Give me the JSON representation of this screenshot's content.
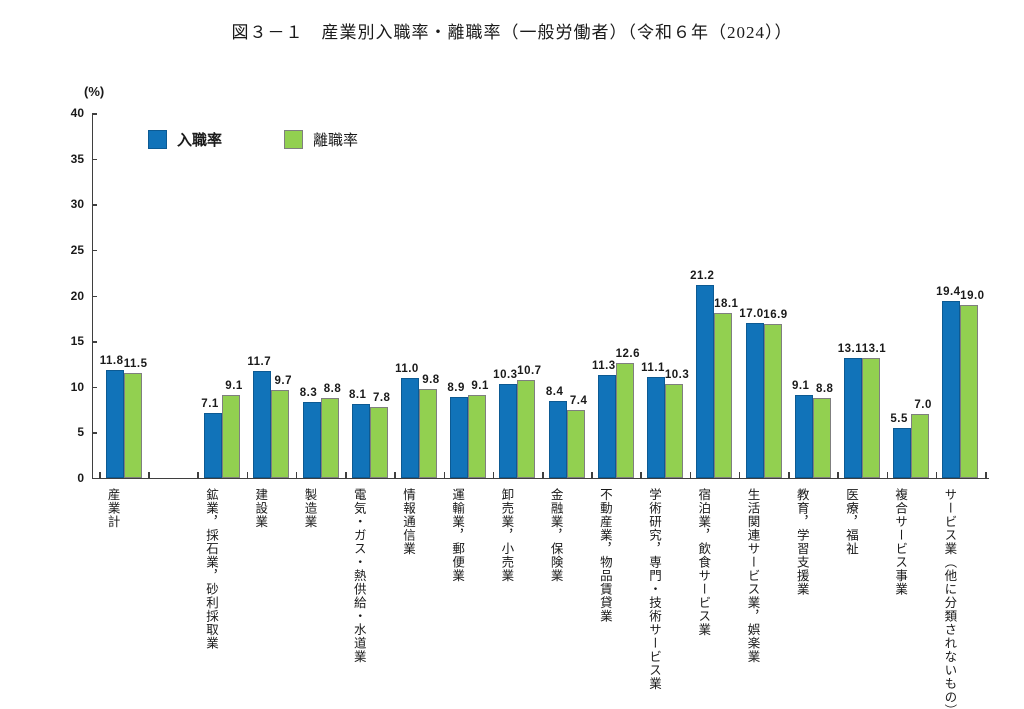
{
  "title": "図３－１　産業別入職率・離職率（一般労働者）（令和６年（2024））",
  "y_axis_unit_label": "(%)",
  "legend": {
    "series1_label": "入職率",
    "series2_label": "離職率"
  },
  "colors": {
    "hire_fill": "#1173B9",
    "hire_border": "#0c5a93",
    "separation_fill": "#92D050",
    "separation_border": "#7f7f7f",
    "axis": "#3f3f3f"
  },
  "chart_data": {
    "type": "bar",
    "title": "図３－１　産業別入職率・離職率（一般労働者）（令和６年（2024））",
    "ylabel": "(%)",
    "ylim": [
      0,
      40
    ],
    "ytick_step": 5,
    "grid": false,
    "legend_position": "top-left-inside",
    "gap_after_first_category": true,
    "categories": [
      "産業計",
      "鉱業，採石業，砂利採取業",
      "建設業",
      "製造業",
      "電気・ガス・熱供給・水道業",
      "情報通信業",
      "運輸業，郵便業",
      "卸売業，小売業",
      "金融業，保険業",
      "不動産業，物品賃貸業",
      "学術研究，専門・技術サービス業",
      "宿泊業，飲食サービス業",
      "生活関連サービス業，娯楽業",
      "教育，学習支援業",
      "医療，福祉",
      "複合サービス事業",
      "サービス業（他に分類されないもの）"
    ],
    "series": [
      {
        "name": "入職率",
        "values": [
          11.8,
          7.1,
          11.7,
          8.3,
          8.1,
          11.0,
          8.9,
          10.3,
          8.4,
          11.3,
          11.1,
          21.2,
          17.0,
          9.1,
          13.1,
          5.5,
          19.4
        ]
      },
      {
        "name": "離職率",
        "values": [
          11.5,
          9.1,
          9.7,
          8.8,
          7.8,
          9.8,
          9.1,
          10.7,
          7.4,
          12.6,
          10.3,
          18.1,
          16.9,
          8.8,
          13.1,
          7.0,
          19.0
        ]
      }
    ]
  }
}
